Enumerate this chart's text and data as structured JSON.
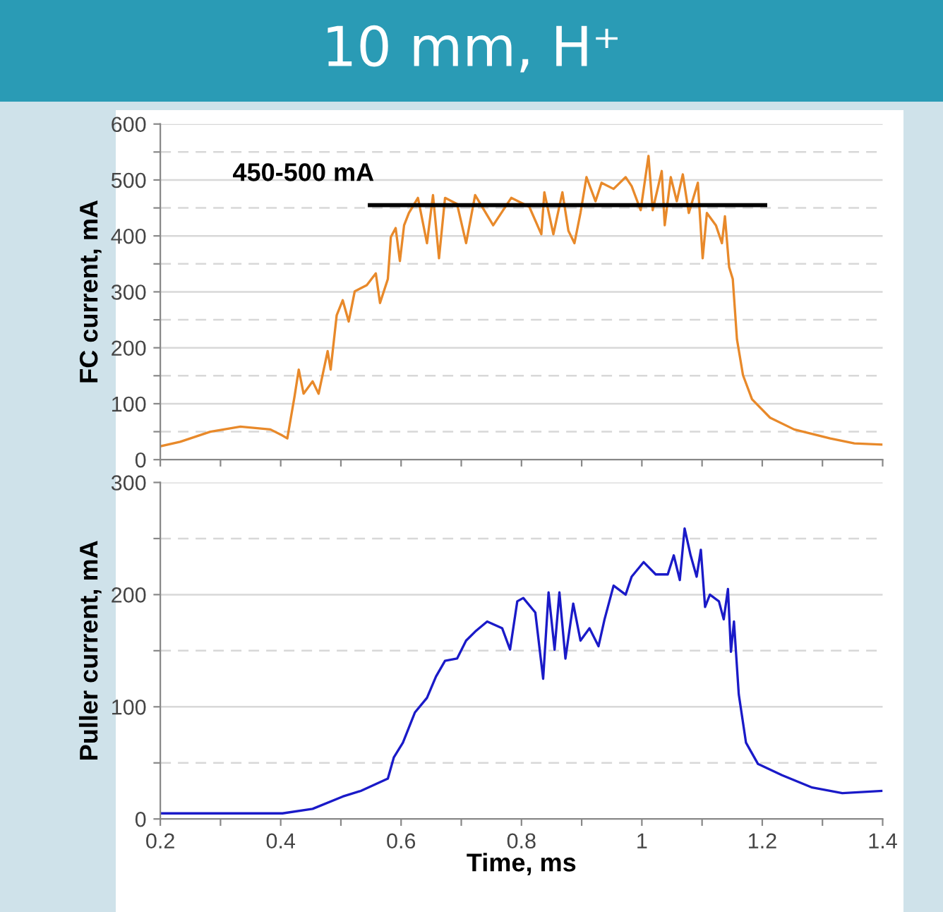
{
  "chart_data": [
    {
      "type": "line",
      "title": "10 mm, H⁺",
      "ylabel": "FC current, mA",
      "xlim": [
        0.2,
        1.4
      ],
      "ylim": [
        0,
        600
      ],
      "xticks": [
        0.2,
        {
          "value": 0.3,
          "label": null
        },
        0.4,
        {
          "value": 0.5,
          "label": null
        },
        0.6,
        {
          "value": 0.7,
          "label": null
        },
        0.8,
        {
          "value": 0.9,
          "label": null
        },
        1,
        {
          "value": 1.1,
          "label": null
        },
        1.2,
        {
          "value": 1.3,
          "label": null
        },
        1.4
      ],
      "yticks": [
        0,
        {
          "value": 50,
          "label": null
        },
        100,
        {
          "value": 150,
          "label": null
        },
        200,
        {
          "value": 250,
          "label": null
        },
        300,
        {
          "value": 350,
          "label": null
        },
        400,
        {
          "value": 450,
          "label": null
        },
        500,
        {
          "value": 550,
          "label": null
        },
        600
      ],
      "tick_labels": "y",
      "grid": "y",
      "legend": false,
      "marker": "none",
      "line_style": "solid",
      "annotations": [
        "450-500 mA"
      ],
      "series": [
        {
          "color": "#e8892a",
          "x": [
            0.2,
            0.233,
            0.283,
            0.333,
            0.383,
            0.403,
            0.411,
            0.423,
            0.43,
            0.438,
            0.453,
            0.463,
            0.478,
            0.483,
            0.493,
            0.503,
            0.513,
            0.523,
            0.543,
            0.558,
            0.565,
            0.578,
            0.583,
            0.591,
            0.598,
            0.605,
            0.613,
            0.628,
            0.643,
            0.653,
            0.663,
            0.673,
            0.693,
            0.708,
            0.723,
            0.753,
            0.783,
            0.813,
            0.833,
            0.838,
            0.853,
            0.868,
            0.878,
            0.888,
            0.898,
            0.908,
            0.923,
            0.933,
            0.953,
            0.973,
            0.983,
            0.998,
            1.011,
            1.018,
            1.033,
            1.038,
            1.048,
            1.058,
            1.068,
            1.078,
            1.093,
            1.101,
            1.108,
            1.123,
            1.133,
            1.138,
            1.145,
            1.151,
            1.158,
            1.168,
            1.183,
            1.213,
            1.253,
            1.313,
            1.353,
            1.398
          ],
          "values": [
            24,
            32,
            50,
            59,
            54,
            43,
            38,
            113,
            161,
            118,
            140,
            118,
            194,
            161,
            258,
            285,
            247,
            301,
            312,
            333,
            280,
            323,
            398,
            414,
            355,
            419,
            441,
            468,
            387,
            473,
            360,
            468,
            457,
            387,
            473,
            419,
            468,
            452,
            403,
            478,
            403,
            478,
            409,
            387,
            441,
            505,
            462,
            495,
            484,
            505,
            489,
            446,
            543,
            446,
            516,
            419,
            505,
            462,
            510,
            441,
            495,
            360,
            441,
            419,
            387,
            435,
            344,
            323,
            215,
            151,
            108,
            75,
            54,
            38,
            29,
            27
          ]
        },
        {
          "color": "#000000",
          "x": [
            0.548,
            1.205
          ],
          "values": [
            455,
            455
          ]
        }
      ]
    },
    {
      "type": "line",
      "xlabel": "Time, ms",
      "ylabel": "Puller current, mA",
      "xlim": [
        0.2,
        1.4
      ],
      "ylim": [
        0,
        300
      ],
      "xticks": [
        0.2,
        {
          "value": 0.3,
          "label": null
        },
        0.4,
        {
          "value": 0.5,
          "label": null
        },
        0.6,
        {
          "value": 0.7,
          "label": null
        },
        0.8,
        {
          "value": 0.9,
          "label": null
        },
        1,
        {
          "value": 1.1,
          "label": null
        },
        1.2,
        {
          "value": 1.3,
          "label": null
        },
        1.4
      ],
      "yticks": [
        0,
        {
          "value": 50,
          "label": null
        },
        100,
        {
          "value": 150,
          "label": null
        },
        200,
        {
          "value": 250,
          "label": null
        },
        300
      ],
      "grid": "y",
      "legend": false,
      "marker": "none",
      "line_style": "solid",
      "series": [
        {
          "color": "#1a1ac8",
          "x": [
            0.2,
            0.333,
            0.403,
            0.453,
            0.503,
            0.533,
            0.578,
            0.588,
            0.603,
            0.623,
            0.643,
            0.658,
            0.673,
            0.693,
            0.708,
            0.723,
            0.743,
            0.768,
            0.781,
            0.793,
            0.803,
            0.823,
            0.836,
            0.845,
            0.855,
            0.863,
            0.873,
            0.886,
            0.898,
            0.913,
            0.928,
            0.938,
            0.953,
            0.973,
            0.983,
            1.003,
            1.023,
            1.043,
            1.053,
            1.063,
            1.071,
            1.081,
            1.091,
            1.098,
            1.105,
            1.113,
            1.128,
            1.136,
            1.143,
            1.148,
            1.153,
            1.161,
            1.173,
            1.193,
            1.233,
            1.283,
            1.333,
            1.398
          ],
          "values": [
            5,
            5,
            5,
            9,
            20,
            25,
            36,
            55,
            68,
            95,
            108,
            127,
            141,
            143,
            159,
            167,
            176,
            170,
            151,
            194,
            197,
            184,
            125,
            202,
            151,
            202,
            143,
            192,
            159,
            170,
            154,
            178,
            208,
            200,
            216,
            229,
            218,
            218,
            235,
            213,
            259,
            235,
            216,
            240,
            189,
            200,
            194,
            178,
            205,
            149,
            176,
            111,
            68,
            49,
            39,
            28,
            23,
            25
          ]
        }
      ]
    }
  ]
}
